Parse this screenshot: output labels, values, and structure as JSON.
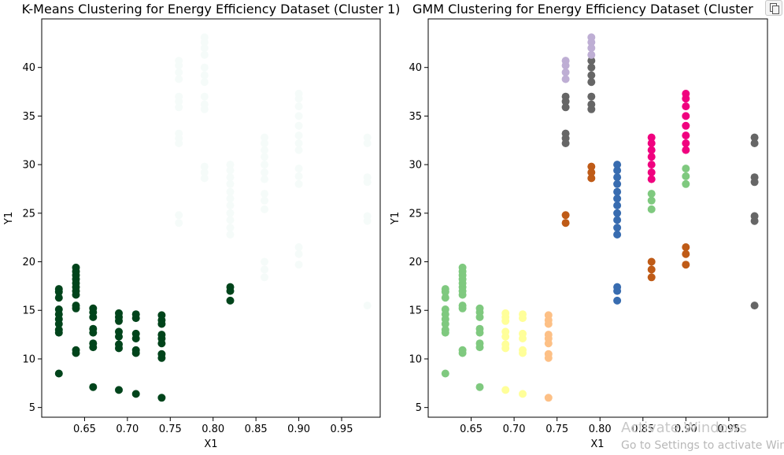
{
  "chart_data": [
    {
      "type": "scatter",
      "title": "K-Means Clustering for Energy Efficiency Dataset (Cluster 1)",
      "xlabel": "X1",
      "ylabel": "Y1",
      "xlim": [
        0.6,
        0.995
      ],
      "ylim": [
        4.0,
        45.0
      ],
      "xticks": [
        "0.65",
        "0.70",
        "0.75",
        "0.80",
        "0.85",
        "0.90",
        "0.95"
      ],
      "yticks": [
        "5",
        "10",
        "15",
        "20",
        "25",
        "30",
        "35",
        "40"
      ],
      "grid": false,
      "series": [
        {
          "color": "#00441b",
          "points": [
            [
              0.62,
              8.5
            ],
            [
              0.62,
              12.7
            ],
            [
              0.62,
              13.0
            ],
            [
              0.62,
              13.6
            ],
            [
              0.62,
              14.1
            ],
            [
              0.62,
              14.6
            ],
            [
              0.62,
              15.1
            ],
            [
              0.62,
              16.3
            ],
            [
              0.62,
              16.9
            ],
            [
              0.62,
              17.2
            ],
            [
              0.64,
              10.6
            ],
            [
              0.64,
              10.9
            ],
            [
              0.64,
              15.2
            ],
            [
              0.64,
              15.5
            ],
            [
              0.64,
              16.6
            ],
            [
              0.64,
              17.0
            ],
            [
              0.64,
              17.4
            ],
            [
              0.64,
              17.8
            ],
            [
              0.64,
              18.2
            ],
            [
              0.64,
              18.6
            ],
            [
              0.64,
              19.0
            ],
            [
              0.64,
              19.4
            ],
            [
              0.66,
              7.1
            ],
            [
              0.66,
              11.2
            ],
            [
              0.66,
              11.6
            ],
            [
              0.66,
              12.7
            ],
            [
              0.66,
              13.1
            ],
            [
              0.66,
              14.3
            ],
            [
              0.66,
              14.8
            ],
            [
              0.66,
              15.2
            ],
            [
              0.69,
              6.8
            ],
            [
              0.69,
              11.1
            ],
            [
              0.69,
              11.5
            ],
            [
              0.69,
              12.3
            ],
            [
              0.69,
              12.8
            ],
            [
              0.69,
              13.9
            ],
            [
              0.69,
              14.3
            ],
            [
              0.69,
              14.7
            ],
            [
              0.71,
              6.4
            ],
            [
              0.71,
              10.6
            ],
            [
              0.71,
              10.9
            ],
            [
              0.71,
              12.1
            ],
            [
              0.71,
              12.6
            ],
            [
              0.71,
              14.2
            ],
            [
              0.71,
              14.6
            ],
            [
              0.74,
              6.0
            ],
            [
              0.74,
              10.1
            ],
            [
              0.74,
              10.5
            ],
            [
              0.74,
              11.6
            ],
            [
              0.74,
              12.1
            ],
            [
              0.74,
              12.5
            ],
            [
              0.74,
              13.6
            ],
            [
              0.74,
              14.0
            ],
            [
              0.74,
              14.5
            ],
            [
              0.82,
              16.0
            ],
            [
              0.82,
              17.0
            ],
            [
              0.82,
              17.4
            ]
          ]
        },
        {
          "color": "#f5fbf9",
          "points": [
            [
              0.76,
              24.0
            ],
            [
              0.76,
              24.8
            ],
            [
              0.76,
              32.2
            ],
            [
              0.76,
              32.7
            ],
            [
              0.76,
              33.2
            ],
            [
              0.76,
              35.9
            ],
            [
              0.76,
              36.5
            ],
            [
              0.76,
              37.0
            ],
            [
              0.76,
              38.8
            ],
            [
              0.76,
              39.5
            ],
            [
              0.76,
              40.2
            ],
            [
              0.76,
              40.7
            ],
            [
              0.79,
              28.6
            ],
            [
              0.79,
              29.2
            ],
            [
              0.79,
              29.8
            ],
            [
              0.79,
              35.7
            ],
            [
              0.79,
              36.2
            ],
            [
              0.79,
              37.0
            ],
            [
              0.79,
              38.5
            ],
            [
              0.79,
              39.2
            ],
            [
              0.79,
              40.0
            ],
            [
              0.79,
              41.3
            ],
            [
              0.79,
              42.0
            ],
            [
              0.79,
              42.6
            ],
            [
              0.79,
              43.1
            ],
            [
              0.82,
              22.8
            ],
            [
              0.82,
              23.5
            ],
            [
              0.82,
              24.3
            ],
            [
              0.82,
              25.0
            ],
            [
              0.82,
              25.8
            ],
            [
              0.82,
              26.5
            ],
            [
              0.82,
              27.2
            ],
            [
              0.82,
              28.0
            ],
            [
              0.82,
              28.7
            ],
            [
              0.82,
              29.4
            ],
            [
              0.82,
              30.0
            ],
            [
              0.86,
              18.4
            ],
            [
              0.86,
              19.2
            ],
            [
              0.86,
              20.0
            ],
            [
              0.86,
              25.4
            ],
            [
              0.86,
              26.3
            ],
            [
              0.86,
              27.0
            ],
            [
              0.86,
              28.5
            ],
            [
              0.86,
              29.2
            ],
            [
              0.86,
              30.0
            ],
            [
              0.86,
              30.8
            ],
            [
              0.86,
              31.5
            ],
            [
              0.86,
              32.2
            ],
            [
              0.86,
              32.8
            ],
            [
              0.9,
              19.7
            ],
            [
              0.9,
              20.8
            ],
            [
              0.9,
              21.5
            ],
            [
              0.9,
              28.0
            ],
            [
              0.9,
              28.8
            ],
            [
              0.9,
              29.6
            ],
            [
              0.9,
              31.5
            ],
            [
              0.9,
              32.2
            ],
            [
              0.9,
              33.0
            ],
            [
              0.9,
              34.0
            ],
            [
              0.9,
              35.0
            ],
            [
              0.9,
              36.0
            ],
            [
              0.9,
              36.8
            ],
            [
              0.9,
              37.3
            ],
            [
              0.98,
              15.5
            ],
            [
              0.98,
              24.2
            ],
            [
              0.98,
              24.7
            ],
            [
              0.98,
              28.2
            ],
            [
              0.98,
              28.7
            ],
            [
              0.98,
              32.2
            ],
            [
              0.98,
              32.8
            ]
          ]
        }
      ]
    },
    {
      "type": "scatter",
      "title": "GMM Clustering for Energy Efficiency Dataset (Cluster",
      "xlabel": "X1",
      "ylabel": "Y1",
      "xlim": [
        0.6,
        0.995
      ],
      "ylim": [
        4.0,
        45.0
      ],
      "xticks": [
        "0.65",
        "0.70",
        "0.75",
        "0.80",
        "0.85",
        "0.90",
        "0.95"
      ],
      "yticks": [
        "5",
        "10",
        "15",
        "20",
        "25",
        "30",
        "35",
        "40"
      ],
      "grid": false,
      "series": [
        {
          "color": "#7fc97f",
          "points": [
            [
              0.62,
              8.5
            ],
            [
              0.62,
              12.7
            ],
            [
              0.62,
              13.0
            ],
            [
              0.62,
              13.6
            ],
            [
              0.62,
              14.1
            ],
            [
              0.62,
              14.6
            ],
            [
              0.62,
              15.1
            ],
            [
              0.62,
              16.3
            ],
            [
              0.62,
              16.9
            ],
            [
              0.62,
              17.2
            ],
            [
              0.64,
              10.6
            ],
            [
              0.64,
              10.9
            ],
            [
              0.64,
              15.2
            ],
            [
              0.64,
              15.5
            ],
            [
              0.64,
              16.6
            ],
            [
              0.64,
              17.0
            ],
            [
              0.64,
              17.4
            ],
            [
              0.64,
              17.8
            ],
            [
              0.64,
              18.2
            ],
            [
              0.64,
              18.6
            ],
            [
              0.64,
              19.0
            ],
            [
              0.64,
              19.4
            ],
            [
              0.66,
              7.1
            ],
            [
              0.66,
              11.2
            ],
            [
              0.66,
              11.6
            ],
            [
              0.66,
              12.7
            ],
            [
              0.66,
              13.1
            ],
            [
              0.66,
              14.3
            ],
            [
              0.66,
              14.8
            ],
            [
              0.66,
              15.2
            ],
            [
              0.86,
              25.4
            ],
            [
              0.86,
              26.3
            ],
            [
              0.86,
              27.0
            ],
            [
              0.9,
              28.0
            ],
            [
              0.9,
              28.8
            ],
            [
              0.9,
              29.6
            ]
          ]
        },
        {
          "color": "#ffff99",
          "points": [
            [
              0.69,
              6.8
            ],
            [
              0.69,
              11.1
            ],
            [
              0.69,
              11.5
            ],
            [
              0.69,
              12.3
            ],
            [
              0.69,
              12.8
            ],
            [
              0.69,
              13.9
            ],
            [
              0.69,
              14.3
            ],
            [
              0.69,
              14.7
            ],
            [
              0.71,
              6.4
            ],
            [
              0.71,
              10.6
            ],
            [
              0.71,
              10.9
            ],
            [
              0.71,
              12.1
            ],
            [
              0.71,
              12.6
            ],
            [
              0.71,
              14.2
            ],
            [
              0.71,
              14.6
            ]
          ]
        },
        {
          "color": "#fdc086",
          "points": [
            [
              0.74,
              6.0
            ],
            [
              0.74,
              10.1
            ],
            [
              0.74,
              10.5
            ],
            [
              0.74,
              11.6
            ],
            [
              0.74,
              12.1
            ],
            [
              0.74,
              12.5
            ],
            [
              0.74,
              13.6
            ],
            [
              0.74,
              14.0
            ],
            [
              0.74,
              14.5
            ]
          ]
        },
        {
          "color": "#bf5b17",
          "points": [
            [
              0.76,
              24.0
            ],
            [
              0.76,
              24.8
            ],
            [
              0.79,
              28.6
            ],
            [
              0.79,
              29.2
            ],
            [
              0.79,
              29.8
            ],
            [
              0.86,
              18.4
            ],
            [
              0.86,
              19.2
            ],
            [
              0.86,
              20.0
            ],
            [
              0.9,
              19.7
            ],
            [
              0.9,
              20.8
            ],
            [
              0.9,
              21.5
            ]
          ]
        },
        {
          "color": "#666666",
          "points": [
            [
              0.76,
              32.2
            ],
            [
              0.76,
              32.7
            ],
            [
              0.76,
              33.2
            ],
            [
              0.76,
              35.9
            ],
            [
              0.76,
              36.5
            ],
            [
              0.76,
              37.0
            ],
            [
              0.79,
              35.7
            ],
            [
              0.79,
              36.2
            ],
            [
              0.79,
              37.0
            ],
            [
              0.79,
              38.5
            ],
            [
              0.79,
              39.2
            ],
            [
              0.79,
              40.0
            ],
            [
              0.79,
              40.7
            ],
            [
              0.98,
              15.5
            ],
            [
              0.98,
              24.2
            ],
            [
              0.98,
              24.7
            ],
            [
              0.98,
              28.2
            ],
            [
              0.98,
              28.7
            ],
            [
              0.98,
              32.2
            ],
            [
              0.98,
              32.8
            ]
          ]
        },
        {
          "color": "#beaed4",
          "points": [
            [
              0.76,
              38.8
            ],
            [
              0.76,
              39.5
            ],
            [
              0.76,
              40.2
            ],
            [
              0.76,
              40.7
            ],
            [
              0.79,
              41.3
            ],
            [
              0.79,
              42.0
            ],
            [
              0.79,
              42.6
            ],
            [
              0.79,
              43.1
            ]
          ]
        },
        {
          "color": "#386cb0",
          "points": [
            [
              0.82,
              16.0
            ],
            [
              0.82,
              17.0
            ],
            [
              0.82,
              17.4
            ],
            [
              0.82,
              22.8
            ],
            [
              0.82,
              23.5
            ],
            [
              0.82,
              24.3
            ],
            [
              0.82,
              25.0
            ],
            [
              0.82,
              25.8
            ],
            [
              0.82,
              26.5
            ],
            [
              0.82,
              27.2
            ],
            [
              0.82,
              28.0
            ],
            [
              0.82,
              28.7
            ],
            [
              0.82,
              29.4
            ],
            [
              0.82,
              30.0
            ]
          ]
        },
        {
          "color": "#f0027f",
          "points": [
            [
              0.86,
              28.5
            ],
            [
              0.86,
              29.2
            ],
            [
              0.86,
              30.0
            ],
            [
              0.86,
              30.8
            ],
            [
              0.86,
              31.5
            ],
            [
              0.86,
              32.2
            ],
            [
              0.86,
              32.8
            ],
            [
              0.9,
              31.5
            ],
            [
              0.9,
              32.2
            ],
            [
              0.9,
              33.0
            ],
            [
              0.9,
              34.0
            ],
            [
              0.9,
              35.0
            ],
            [
              0.9,
              36.0
            ],
            [
              0.9,
              36.8
            ],
            [
              0.9,
              37.3
            ]
          ]
        }
      ]
    }
  ],
  "watermark": {
    "line1": "Activate Windows",
    "line2": "Go to Settings to activate Wind"
  }
}
